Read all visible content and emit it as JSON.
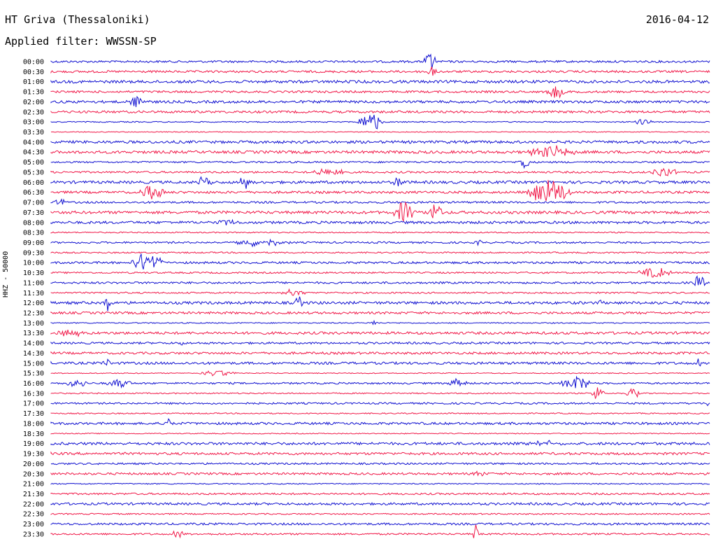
{
  "header": {
    "station": "HT Griva (Thessaloniki)",
    "date": "2016-04-12",
    "filter": "Applied filter: WWSSN-SP"
  },
  "channel": "HHZ - 50000",
  "colors": {
    "trace_a": "#1010d0",
    "trace_b": "#f01848"
  },
  "time_labels": [
    "00:00",
    "00:30",
    "01:00",
    "01:30",
    "02:00",
    "02:30",
    "03:00",
    "03:30",
    "04:00",
    "04:30",
    "05:00",
    "05:30",
    "06:00",
    "06:30",
    "07:00",
    "07:30",
    "08:00",
    "08:30",
    "09:00",
    "09:30",
    "10:00",
    "10:30",
    "11:00",
    "11:30",
    "12:00",
    "12:30",
    "13:00",
    "13:30",
    "14:00",
    "14:30",
    "15:00",
    "15:30",
    "16:00",
    "16:30",
    "17:00",
    "17:30",
    "18:00",
    "18:30",
    "19:00",
    "19:30",
    "20:00",
    "20:30",
    "21:00",
    "21:30",
    "22:00",
    "22:30",
    "23:00",
    "23:30"
  ]
}
